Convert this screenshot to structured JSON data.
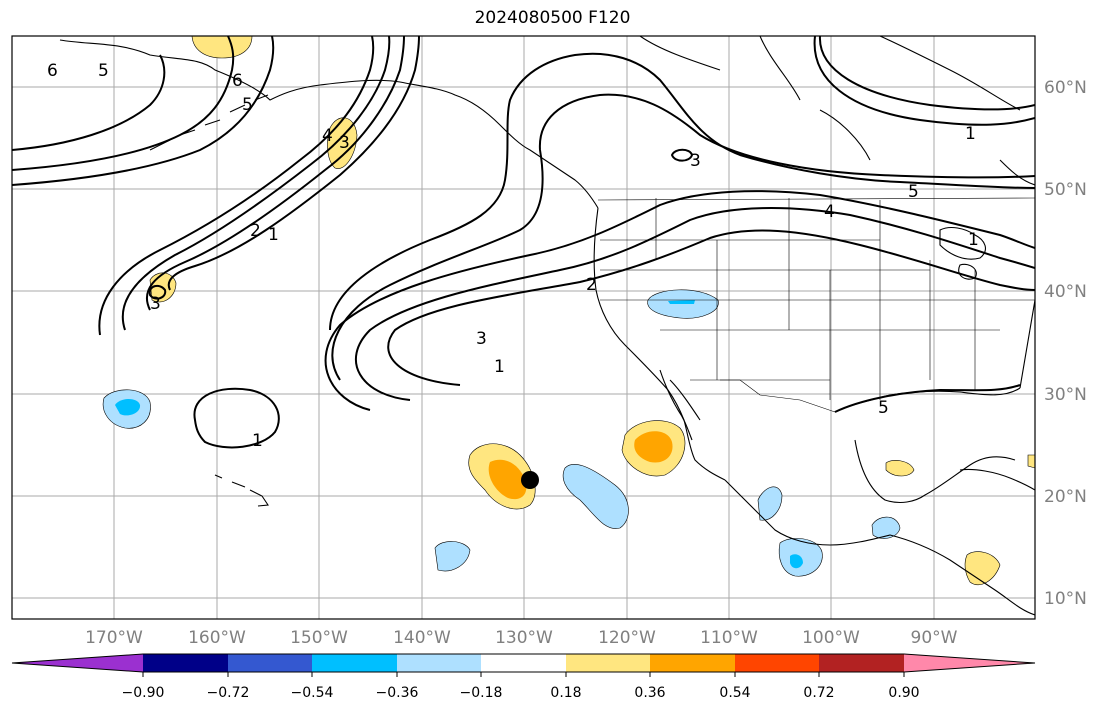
{
  "title": "2024080500 F120",
  "lon_labels": [
    "170°W",
    "160°W",
    "150°W",
    "140°W",
    "130°W",
    "120°W",
    "110°W",
    "100°W",
    "90°W"
  ],
  "lat_labels": [
    "60°N",
    "50°N",
    "40°N",
    "30°N",
    "20°N",
    "10°N"
  ],
  "contour_labels": [
    "6",
    "5",
    "6",
    "5",
    "4",
    "3",
    "2",
    "1",
    "3",
    "2",
    "3",
    "1",
    "1",
    "3",
    "1",
    "5",
    "4",
    "5",
    "1"
  ],
  "colorbar": {
    "colors": [
      "#9b30d0",
      "#000088",
      "#3458d0",
      "#00bfff",
      "#aee0ff",
      "#ffffff",
      "#ffe680",
      "#ffa500",
      "#ff4500",
      "#b22222",
      "#ff88aa"
    ],
    "tick_labels": [
      "−0.90",
      "−0.72",
      "−0.54",
      "−0.36",
      "−0.18",
      "0.18",
      "0.36",
      "0.54",
      "0.72",
      "0.90"
    ]
  },
  "marker": "storm-center-dot"
}
